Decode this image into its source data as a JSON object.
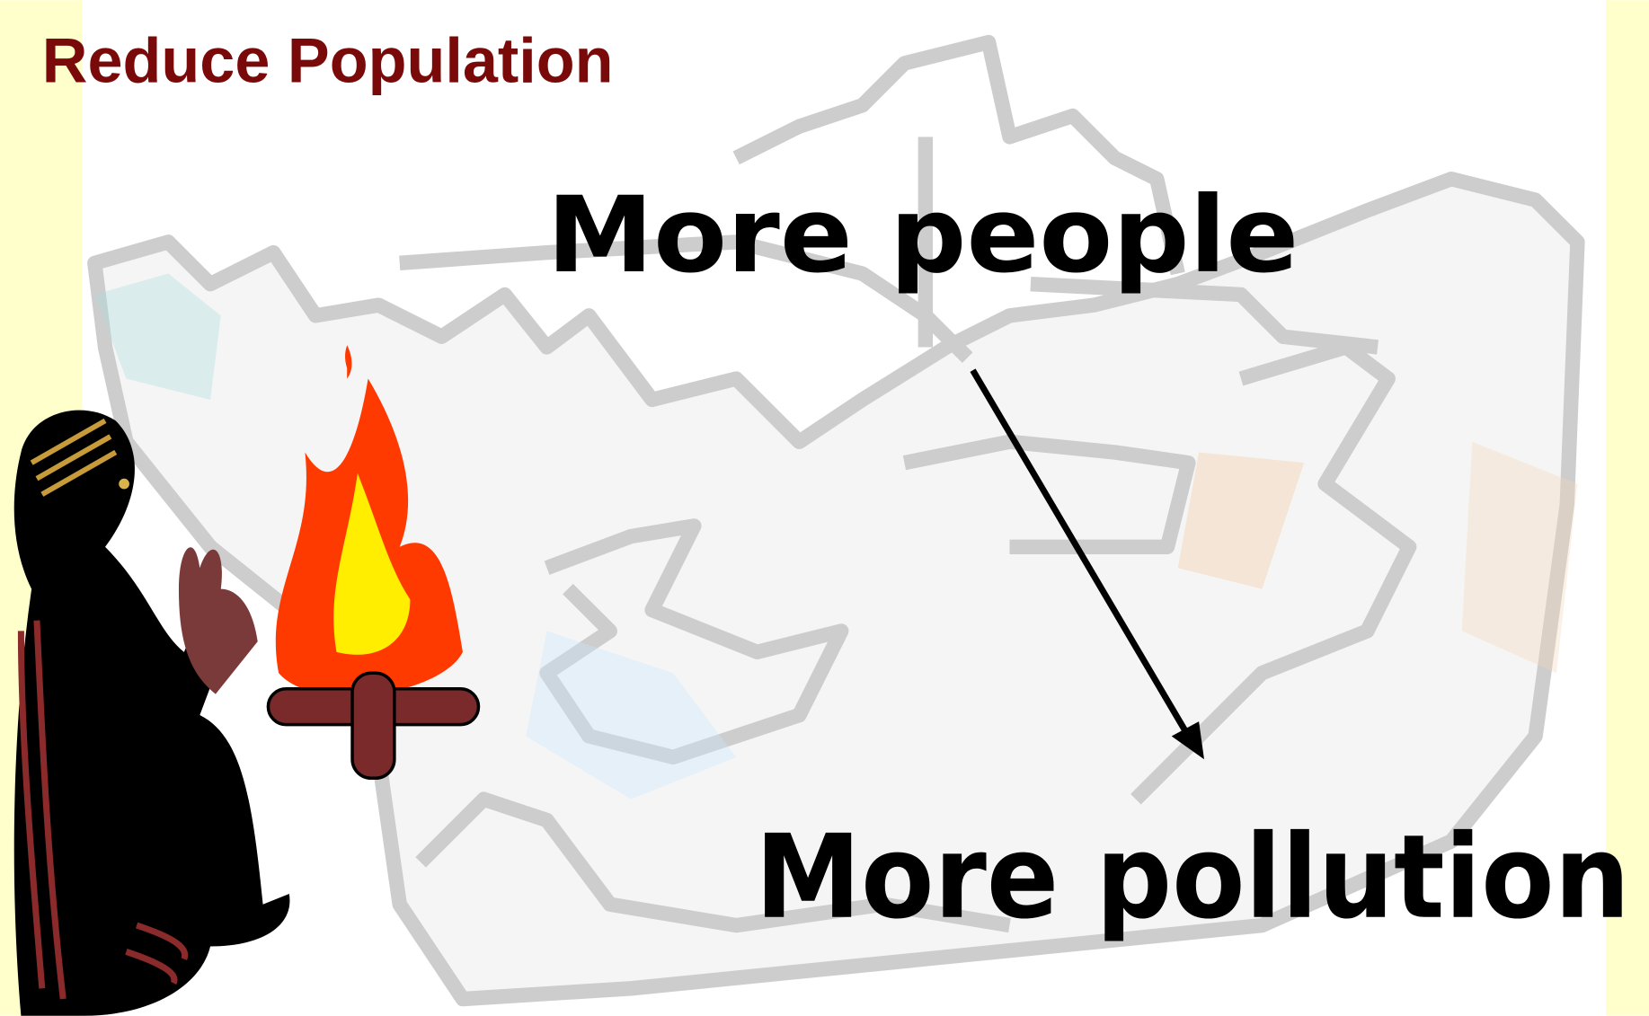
{
  "slide": {
    "title": "Reduce Population",
    "text_top": "More people",
    "text_bottom": "More pollution"
  }
}
